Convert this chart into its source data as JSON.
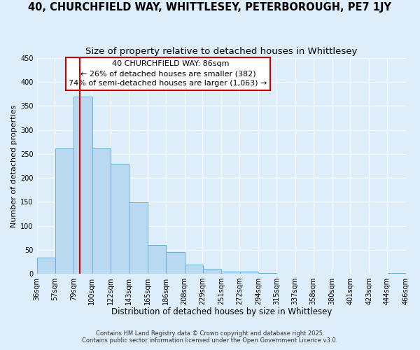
{
  "title": "40, CHURCHFIELD WAY, WHITTLESEY, PETERBOROUGH, PE7 1JY",
  "subtitle": "Size of property relative to detached houses in Whittlesey",
  "xlabel": "Distribution of detached houses by size in Whittlesey",
  "ylabel": "Number of detached properties",
  "bar_values": [
    33,
    262,
    369,
    262,
    229,
    149,
    60,
    45,
    19,
    10,
    5,
    4,
    1,
    0,
    0,
    0,
    0,
    0,
    0,
    1
  ],
  "bin_edges": [
    36,
    57,
    79,
    100,
    122,
    143,
    165,
    186,
    208,
    229,
    251,
    272,
    294,
    315,
    337,
    358,
    380,
    401,
    423,
    444,
    466
  ],
  "bar_color": "#b8d9f0",
  "bar_edge_color": "#6aaed6",
  "vline_x": 86,
  "vline_color": "#cc0000",
  "annotation_title": "40 CHURCHFIELD WAY: 86sqm",
  "annotation_line1": "← 26% of detached houses are smaller (382)",
  "annotation_line2": "74% of semi-detached houses are larger (1,063) →",
  "annotation_box_edge": "#cc0000",
  "ylim": [
    0,
    450
  ],
  "yticks": [
    0,
    50,
    100,
    150,
    200,
    250,
    300,
    350,
    400,
    450
  ],
  "background_color": "#ddeefa",
  "grid_color": "#ffffff",
  "footnote1": "Contains HM Land Registry data © Crown copyright and database right 2025.",
  "footnote2": "Contains public sector information licensed under the Open Government Licence v3.0.",
  "title_fontsize": 10.5,
  "subtitle_fontsize": 9.5,
  "xlabel_fontsize": 8.5,
  "ylabel_fontsize": 8,
  "tick_fontsize": 7,
  "annotation_fontsize": 8,
  "footnote_fontsize": 6
}
